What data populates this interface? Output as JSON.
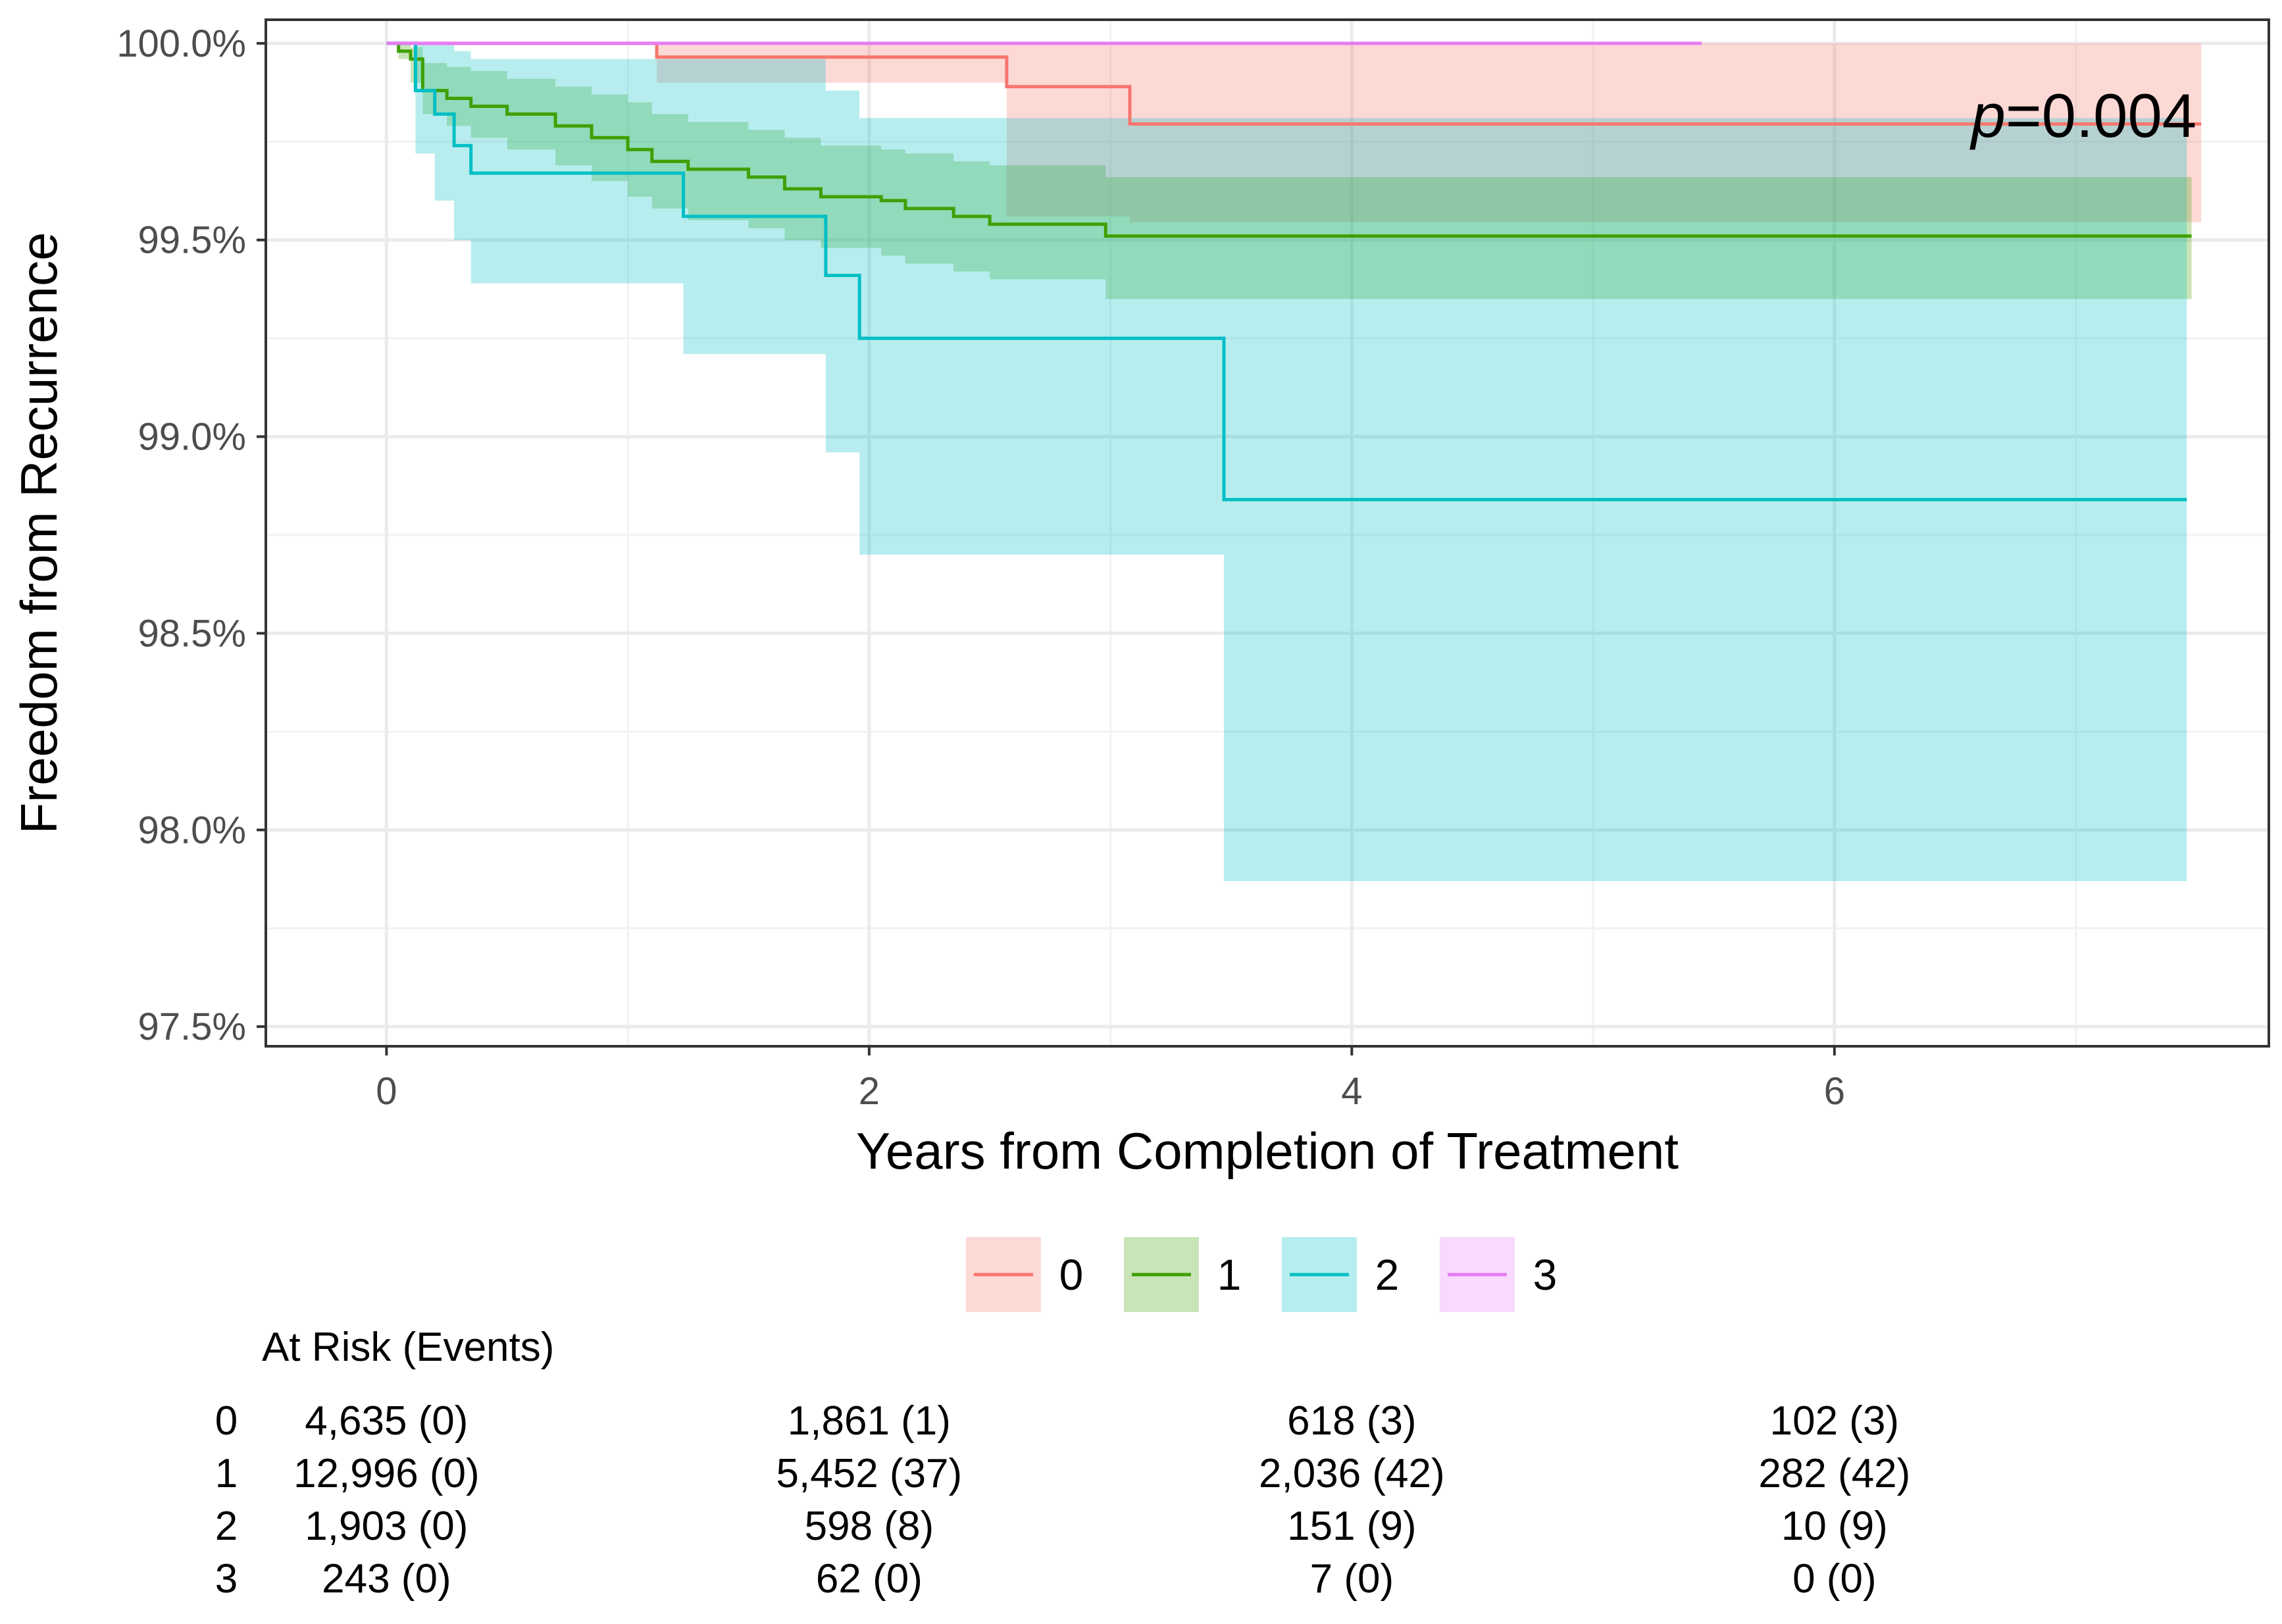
{
  "chart_data": {
    "type": "line",
    "subtype": "kaplan-meier",
    "title": "",
    "xlabel": "Years from Completion of Treatment",
    "ylabel": "Freedom from Recurrence",
    "xlim": [
      -0.5,
      7.8
    ],
    "ylim": [
      97.45,
      100.06
    ],
    "x_ticks": [
      0,
      2,
      4,
      6
    ],
    "x_tick_labels": [
      "0",
      "2",
      "4",
      "6"
    ],
    "y_ticks": [
      97.5,
      98.0,
      98.5,
      99.0,
      99.5,
      100.0
    ],
    "y_tick_labels": [
      "97.5%",
      "98.0%",
      "98.5%",
      "99.0%",
      "99.5%",
      "100.0%"
    ],
    "grid": true,
    "annotation": {
      "prefix": "p",
      "text": "=0.004"
    },
    "legend": {
      "position": "bottom",
      "entries": [
        "0",
        "1",
        "2",
        "3"
      ]
    },
    "series": [
      {
        "name": "0",
        "color": "#F8766D",
        "x": [
          0,
          1.12,
          2.57,
          3.08,
          7.52
        ],
        "y": [
          100.0,
          99.965,
          99.89,
          99.795,
          99.795
        ],
        "ci_x": [
          0,
          1.12,
          2.57,
          3.08,
          7.52
        ],
        "ci_upper": [
          100.0,
          100.0,
          100.0,
          100.0,
          100.0
        ],
        "ci_lower": [
          100.0,
          99.9,
          99.56,
          99.545,
          99.545
        ]
      },
      {
        "name": "1",
        "color": "#3EA000",
        "x": [
          0,
          0.05,
          0.1,
          0.15,
          0.25,
          0.35,
          0.5,
          0.7,
          0.85,
          1.0,
          1.1,
          1.25,
          1.5,
          1.65,
          1.8,
          2.05,
          2.15,
          2.35,
          2.5,
          2.98,
          7.48
        ],
        "y": [
          100.0,
          99.98,
          99.96,
          99.88,
          99.86,
          99.84,
          99.82,
          99.79,
          99.76,
          99.73,
          99.7,
          99.68,
          99.66,
          99.63,
          99.61,
          99.6,
          99.58,
          99.56,
          99.54,
          99.51,
          99.51
        ],
        "ci_x": [
          0,
          0.05,
          0.1,
          0.15,
          0.25,
          0.35,
          0.5,
          0.7,
          0.85,
          1.0,
          1.1,
          1.25,
          1.5,
          1.65,
          1.8,
          2.05,
          2.15,
          2.35,
          2.5,
          2.98,
          7.48
        ],
        "ci_upper": [
          100.0,
          100.0,
          99.99,
          99.95,
          99.94,
          99.93,
          99.91,
          99.89,
          99.87,
          99.85,
          99.82,
          99.8,
          99.78,
          99.76,
          99.74,
          99.73,
          99.72,
          99.7,
          99.69,
          99.66,
          99.66
        ],
        "ci_lower": [
          100.0,
          99.96,
          99.9,
          99.82,
          99.79,
          99.76,
          99.73,
          99.69,
          99.65,
          99.61,
          99.58,
          99.55,
          99.53,
          99.5,
          99.48,
          99.46,
          99.44,
          99.42,
          99.4,
          99.35,
          99.35
        ]
      },
      {
        "name": "2",
        "color": "#00BFC4",
        "x": [
          0,
          0.12,
          0.2,
          0.28,
          0.35,
          1.23,
          1.82,
          1.96,
          3.47,
          7.46
        ],
        "y": [
          100.0,
          99.88,
          99.82,
          99.74,
          99.67,
          99.56,
          99.41,
          99.25,
          98.84,
          98.84
        ],
        "ci_x": [
          0,
          0.12,
          0.2,
          0.28,
          0.35,
          1.23,
          1.82,
          1.96,
          3.47,
          7.46
        ],
        "ci_upper": [
          100.0,
          100.0,
          100.0,
          99.98,
          99.96,
          99.96,
          99.88,
          99.81,
          99.81,
          99.81
        ],
        "ci_lower": [
          100.0,
          99.72,
          99.6,
          99.5,
          99.39,
          99.21,
          98.96,
          98.7,
          97.87,
          97.87
        ]
      },
      {
        "name": "3",
        "color": "#E77BF3",
        "x": [
          0,
          5.45
        ],
        "y": [
          100.0,
          100.0
        ],
        "ci_x": [
          0,
          5.45
        ],
        "ci_upper": [
          100.0,
          100.0
        ],
        "ci_lower": [
          100.0,
          100.0
        ]
      }
    ],
    "risk_table": {
      "title": "At Risk (Events)",
      "times": [
        0,
        2,
        4,
        6
      ],
      "rows": [
        {
          "group": "0",
          "cells": [
            "4,635 (0)",
            "1,861 (1)",
            "618 (3)",
            "102 (3)"
          ]
        },
        {
          "group": "1",
          "cells": [
            "12,996 (0)",
            "5,452 (37)",
            "2,036 (42)",
            "282 (42)"
          ]
        },
        {
          "group": "2",
          "cells": [
            "1,903 (0)",
            "598 (8)",
            "151 (9)",
            "10 (9)"
          ]
        },
        {
          "group": "3",
          "cells": [
            "243 (0)",
            "62 (0)",
            "7 (0)",
            "0 (0)"
          ]
        }
      ]
    }
  }
}
